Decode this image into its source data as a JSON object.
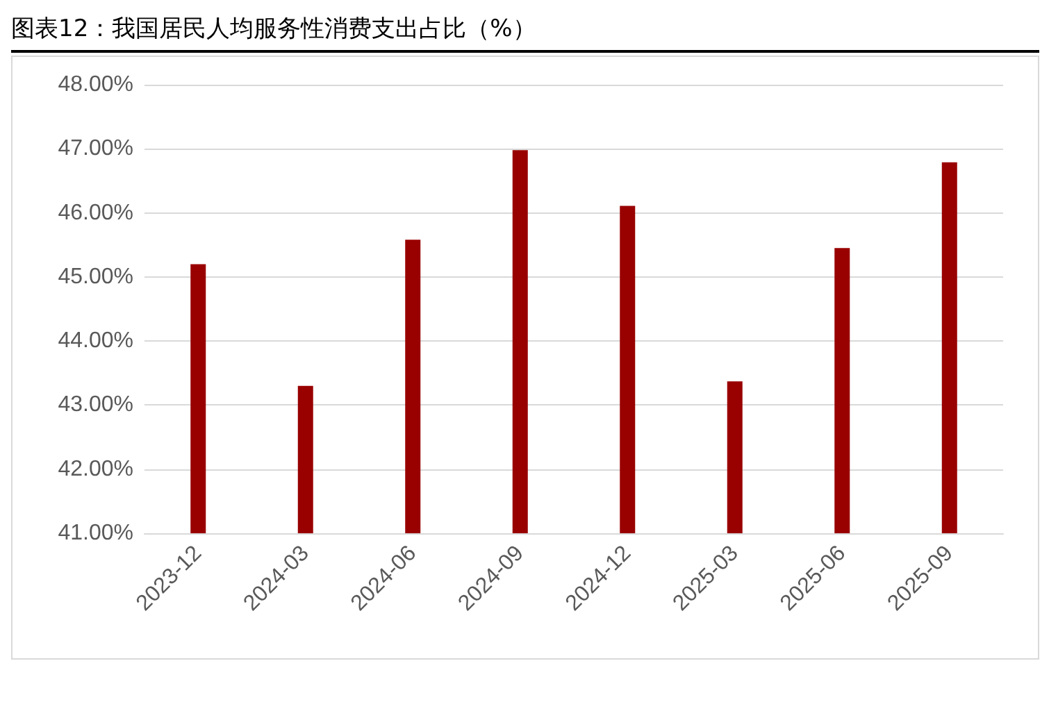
{
  "chart_data": {
    "type": "bar",
    "title": "图表12：我国居民人均服务性消费支出占比（%）",
    "categories": [
      "2023-12",
      "2024-03",
      "2024-06",
      "2024-09",
      "2024-12",
      "2025-03",
      "2025-06",
      "2025-09"
    ],
    "values": [
      45.2,
      43.3,
      45.58,
      46.98,
      46.11,
      43.37,
      45.45,
      46.79
    ],
    "color": "#990000",
    "ylim": [
      41,
      48
    ],
    "yticks": [
      {
        "value": 41,
        "label": "41.00%"
      },
      {
        "value": 42,
        "label": "42.00%"
      },
      {
        "value": 43,
        "label": "43.00%"
      },
      {
        "value": 44,
        "label": "44.00%"
      },
      {
        "value": 45,
        "label": "45.00%"
      },
      {
        "value": 46,
        "label": "46.00%"
      },
      {
        "value": 47,
        "label": "47.00%"
      },
      {
        "value": 48,
        "label": "48.00%"
      }
    ],
    "grid": "y"
  }
}
